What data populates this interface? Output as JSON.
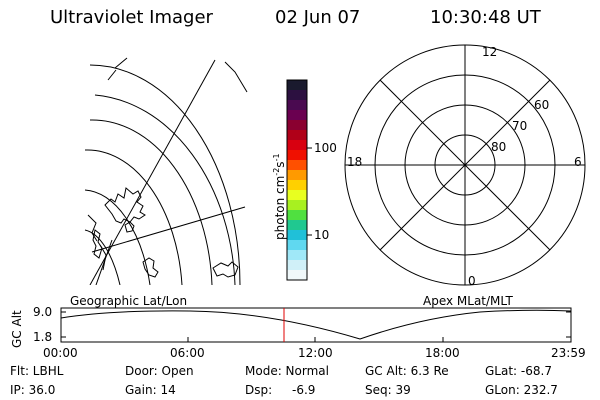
{
  "header": {
    "instrument": "Ultraviolet Imager",
    "date": "02 Jun 07",
    "time": "10:30:48 UT"
  },
  "colorbar": {
    "label": "photon cm",
    "label_exp1": "-2",
    "label_s": "s",
    "label_exp2": "-1",
    "ticks": [
      "100",
      "10"
    ],
    "colors": [
      "#1a1a2e",
      "#2c1040",
      "#4a0a50",
      "#6a0050",
      "#8a0030",
      "#b00018",
      "#d80010",
      "#f01000",
      "#ff5000",
      "#ff9a00",
      "#ffd000",
      "#e8ff20",
      "#a8f020",
      "#50e040",
      "#20c890",
      "#20c0d8",
      "#60d8f0",
      "#a0e8f8",
      "#d0f0f8",
      "#f0f8fa"
    ]
  },
  "polar": {
    "rings": [
      "80",
      "70",
      "60"
    ],
    "clock": {
      "top": "12",
      "left": "18",
      "right": "6",
      "bottom": "0"
    }
  },
  "timeline": {
    "left_label": "Geographic Lat/Lon",
    "right_label": "Apex MLat/MLT",
    "y_axis_label": "GC Alt",
    "y_ticks": [
      "9.0",
      "1.8"
    ],
    "x_ticks": [
      "00:00",
      "06:00",
      "12:00",
      "18:00",
      "23:59"
    ],
    "marker_color": "#e00000"
  },
  "footer": {
    "row1": [
      "Flt: LBHL",
      "Door: Open",
      "Mode: Normal",
      "GC Alt: 6.3 Re",
      "GLat: -68.7"
    ],
    "row2": [
      "IP: 36.0",
      "Gain: 14",
      "Dsp:",
      "-6.9",
      "Seq: 39",
      "GLon: 232.7"
    ]
  }
}
